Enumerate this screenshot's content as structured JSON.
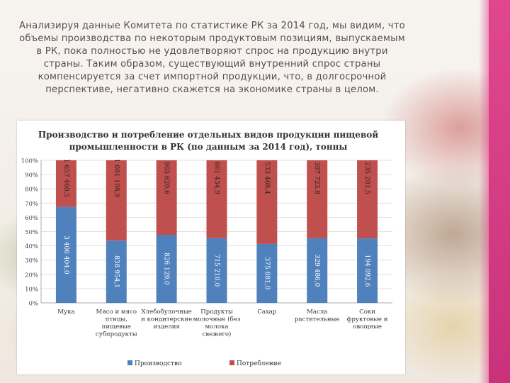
{
  "intro_text": "Анализируя данные Комитета по статистике РК за 2014 год, мы видим, что объемы производства по некоторым продуктовым позициям, выпускаемым в РК, пока полностью не удовлетворяют спрос на продукцию внутри страны. Таким образом, существующий внутренний спрос страны компенсируется за счет импортной продукции, что, в долгосрочной перспективе, негативно скажется на экономике страны в целом.",
  "colors": {
    "production": "#4f81bd",
    "consumption": "#c0504d",
    "accent_bar": "#e0478f"
  },
  "chart_data": {
    "type": "bar",
    "stacked": "percent",
    "title_line1": "Производство и потребление отдельных видов продукции пищевой",
    "title_line2": "промышленности в РК (по данным за 2014 год), тонны",
    "categories": [
      [
        "Мука"
      ],
      [
        "Мясо и мясо",
        "птицы,",
        "пищевые",
        "субпродукты"
      ],
      [
        "Хлебобулочные",
        "и кондитерские",
        "изделия"
      ],
      [
        "Продукты",
        "молочные (без",
        "молока",
        "свежего)"
      ],
      [
        "Сахар"
      ],
      [
        "Масла",
        "растительные"
      ],
      [
        "Соки",
        "фруктовые и",
        "овощные"
      ]
    ],
    "series": [
      {
        "name": "Производство",
        "labels": [
          "3 406 404,0",
          "838 954,1",
          "826 129,0",
          "715 210,0",
          "375 881,0",
          "329 486,0",
          "194 092,6"
        ],
        "values": [
          3406404.0,
          838954.1,
          826129.0,
          715210.0,
          375881.0,
          329486.0,
          194092.6
        ]
      },
      {
        "name": "Потребление",
        "labels": [
          "1 657 460,5",
          "1 081 198,9",
          "903 620,6",
          "861 434,9",
          "533 468,4",
          "397 723,8",
          "235 201,5"
        ],
        "values": [
          1657460.5,
          1081198.9,
          903620.6,
          861434.9,
          533468.4,
          397723.8,
          235201.5
        ]
      }
    ],
    "yticks": [
      "0%",
      "10%",
      "20%",
      "30%",
      "40%",
      "50%",
      "60%",
      "70%",
      "80%",
      "90%",
      "100%"
    ],
    "ylim": [
      0,
      100
    ],
    "grid": true,
    "legend_position": "bottom"
  }
}
